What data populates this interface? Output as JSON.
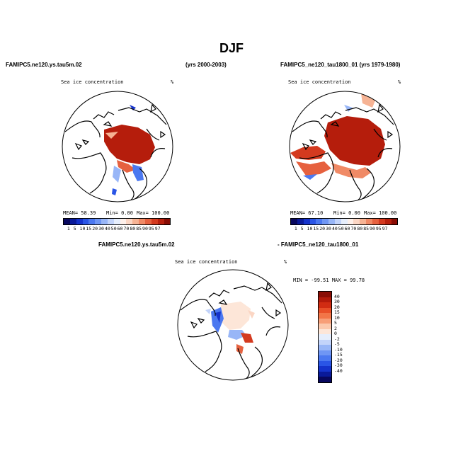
{
  "title": "DJF",
  "panel1": {
    "case_name": "FAMIPC5.ne120.ys.tau5m.02",
    "years": "(yrs 2000-2003)",
    "variable": "Sea ice concentration",
    "unit": "%",
    "mean": "MEAN=  58.39",
    "min": "Min=   0.00",
    "max": "Max= 100.00"
  },
  "panel2": {
    "case_name": "FAMIPC5_ne120_tau1800_01 (yrs 1979-1980)",
    "variable": "Sea ice concentration",
    "unit": "%",
    "mean": "MEAN=  67.10",
    "min": "Min=   0.00",
    "max": "Max= 100.00"
  },
  "panel3": {
    "case_a": "FAMIPC5.ne120.ys.tau5m.02",
    "case_b": "- FAMIPC5_ne120_tau1800_01",
    "variable": "Sea ice concentration",
    "unit": "%",
    "minmax": "MIN = -99.51  MAX =  99.78"
  },
  "colorbar_abs": {
    "colors": [
      "#08085e",
      "#0a1a9a",
      "#1533cc",
      "#2a55e6",
      "#4b78f0",
      "#6f96f4",
      "#98b6f7",
      "#c3d4fa",
      "#e6eefc",
      "#fdf0ea",
      "#fbd6c4",
      "#f6b394",
      "#f08a66",
      "#e6613f",
      "#d43a1f",
      "#b8200e",
      "#8a0d05"
    ],
    "labels": [
      "1",
      "5",
      "10",
      "15",
      "20",
      "30",
      "40",
      "50",
      "60",
      "70",
      "80",
      "85",
      "90",
      "95",
      "97"
    ]
  },
  "colorbar_diff": {
    "colors": [
      "#8a0d05",
      "#b31a0a",
      "#d12c12",
      "#e84f28",
      "#f27548",
      "#f79e78",
      "#fbc8ad",
      "#fde6d8",
      "#e6eefc",
      "#c3d4fa",
      "#98b6f7",
      "#6f96f4",
      "#4b78f0",
      "#2a55e6",
      "#1533cc",
      "#0a1a9a",
      "#08085e"
    ],
    "labels": [
      "40",
      "30",
      "20",
      "15",
      "10",
      "5",
      "2",
      "0",
      "-2",
      "-5",
      "-10",
      "-15",
      "-20",
      "-30",
      "-40"
    ]
  }
}
